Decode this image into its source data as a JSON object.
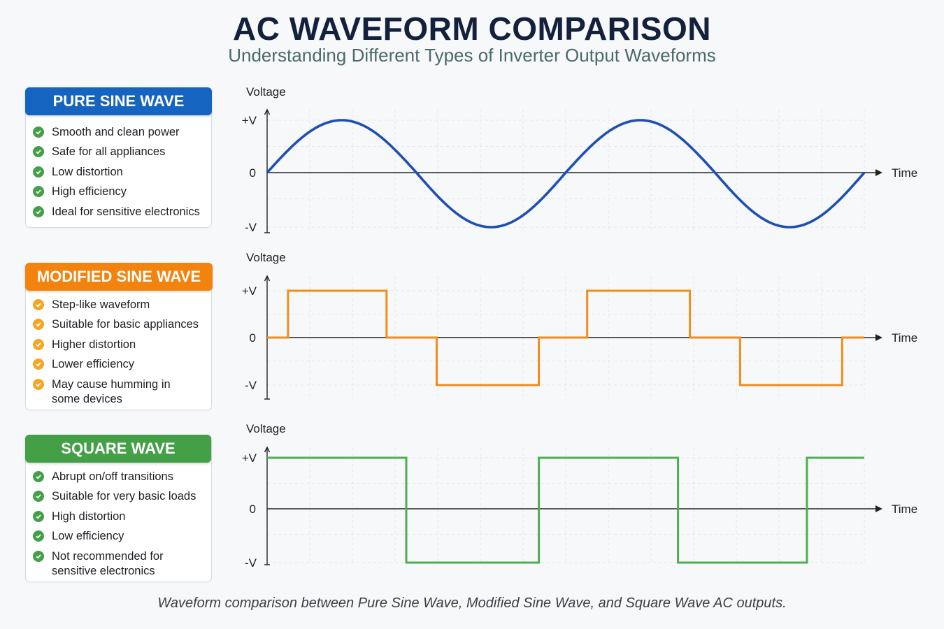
{
  "header": {
    "title": "AC WAVEFORM COMPARISON",
    "subtitle": "Understanding Different Types of Inverter Output Waveforms"
  },
  "cards": [
    {
      "title": "PURE SINE WAVE",
      "color": "#1565c0",
      "check_color": "#43a047",
      "items": [
        "Smooth and clean power",
        "Safe for all appliances",
        "Low distortion",
        "High efficiency",
        "Ideal for sensitive electronics"
      ]
    },
    {
      "title": "MODIFIED SINE WAVE",
      "color": "#f2830f",
      "check_color": "#f5a623",
      "items": [
        "Step-like waveform",
        "Suitable for basic appliances",
        "Higher distortion",
        "Lower efficiency",
        "May cause humming in some devices"
      ]
    },
    {
      "title": "SQUARE WAVE",
      "color": "#43a047",
      "check_color": "#43a047",
      "items": [
        "Abrupt on/off transitions",
        "Suitable for very basic loads",
        "High distortion",
        "Low efficiency",
        "Not recommended for sensitive electronics"
      ]
    }
  ],
  "chart_data": [
    {
      "type": "line",
      "name": "Pure Sine Wave",
      "color": "#1e4fb4",
      "ylabel": "Voltage",
      "xlabel": "Time",
      "yticks": [
        "+V",
        "0",
        "-V"
      ],
      "waveform": "sine",
      "cycles": 2,
      "period_fraction": 0.5
    },
    {
      "type": "line",
      "name": "Modified Sine Wave",
      "color": "#f28c1c",
      "ylabel": "Voltage",
      "xlabel": "Time",
      "yticks": [
        "+V",
        "0",
        "-V"
      ],
      "waveform": "modified-sine",
      "points": [
        [
          0,
          0
        ],
        [
          0.035,
          0
        ],
        [
          0.035,
          1
        ],
        [
          0.2,
          1
        ],
        [
          0.2,
          0
        ],
        [
          0.284,
          0
        ],
        [
          0.284,
          -1
        ],
        [
          0.455,
          -1
        ],
        [
          0.455,
          0
        ],
        [
          0.536,
          0
        ],
        [
          0.536,
          1
        ],
        [
          0.708,
          1
        ],
        [
          0.708,
          0
        ],
        [
          0.792,
          0
        ],
        [
          0.792,
          -1
        ],
        [
          0.963,
          -1
        ],
        [
          0.963,
          0
        ],
        [
          1,
          0
        ]
      ]
    },
    {
      "type": "line",
      "name": "Square Wave",
      "color": "#4caf50",
      "ylabel": "Voltage",
      "xlabel": "Time",
      "yticks": [
        "+V",
        "0",
        "-V"
      ],
      "waveform": "square",
      "points": [
        [
          0,
          1
        ],
        [
          0.233,
          1
        ],
        [
          0.233,
          -1
        ],
        [
          0.455,
          -1
        ],
        [
          0.455,
          1
        ],
        [
          0.688,
          1
        ],
        [
          0.688,
          -1
        ],
        [
          0.904,
          -1
        ],
        [
          0.904,
          1
        ],
        [
          1,
          1
        ]
      ]
    }
  ],
  "footer": {
    "caption": "Waveform comparison between Pure Sine Wave, Modified Sine Wave, and Square Wave AC outputs."
  }
}
